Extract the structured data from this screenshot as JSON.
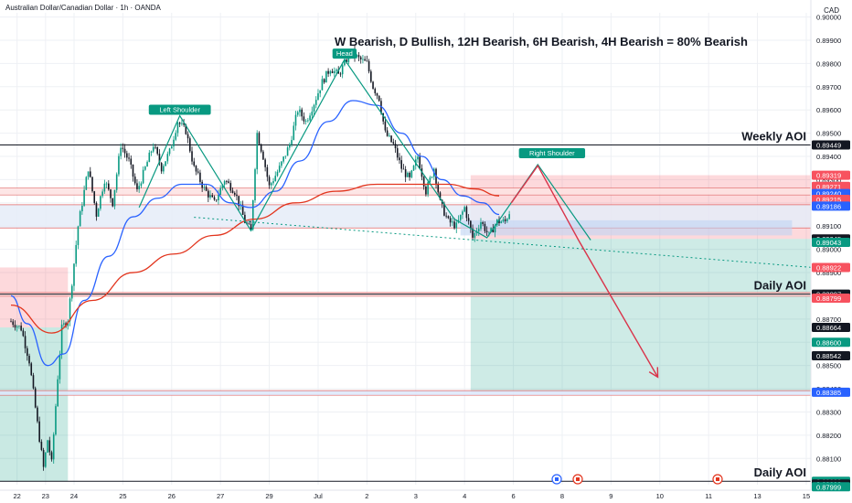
{
  "chart_data": {
    "type": "candlestick",
    "symbol_title": "Australian Dollar/Canadian Dollar · 1h · OANDA",
    "currency": "CAD",
    "headline": "W Bearish, D Bullish, 12H Bearish, 6H Bearish, 4H Bearish = 80% Bearish",
    "ylim": [
      0.87987,
      0.90018
    ],
    "y_ticks": [
      "0.90000",
      "0.89900",
      "0.89800",
      "0.89700",
      "0.89600",
      "0.89500",
      "0.89400",
      "0.89300",
      "0.89200",
      "0.89100",
      "0.89000",
      "0.88900",
      "0.88800",
      "0.88700",
      "0.88600",
      "0.88500",
      "0.88400",
      "0.88300",
      "0.88200",
      "0.88100"
    ],
    "x_ticks": [
      {
        "label": "22",
        "i": 3
      },
      {
        "label": "23",
        "i": 17
      },
      {
        "label": "24",
        "i": 31
      },
      {
        "label": "25",
        "i": 55
      },
      {
        "label": "26",
        "i": 79
      },
      {
        "label": "27",
        "i": 103
      },
      {
        "label": "29",
        "i": 127
      },
      {
        "label": "Jul",
        "i": 151
      },
      {
        "label": "2",
        "i": 175
      },
      {
        "label": "3",
        "i": 199
      },
      {
        "label": "4",
        "i": 223
      },
      {
        "label": "6",
        "i": 247
      },
      {
        "label": "8",
        "i": 271
      },
      {
        "label": "9",
        "i": 295
      },
      {
        "label": "10",
        "i": 319
      },
      {
        "label": "11",
        "i": 343
      },
      {
        "label": "13",
        "i": 367
      },
      {
        "label": "15",
        "i": 391
      }
    ],
    "price_path": [
      [
        0,
        0.8869
      ],
      [
        5,
        0.8866
      ],
      [
        9,
        0.8852
      ],
      [
        13,
        0.8825
      ],
      [
        16,
        0.8806
      ],
      [
        18,
        0.8818
      ],
      [
        20,
        0.8808
      ],
      [
        23,
        0.8845
      ],
      [
        25,
        0.8866
      ],
      [
        28,
        0.887
      ],
      [
        33,
        0.891
      ],
      [
        38,
        0.8935
      ],
      [
        42,
        0.8915
      ],
      [
        46,
        0.893
      ],
      [
        50,
        0.892
      ],
      [
        54,
        0.8945
      ],
      [
        58,
        0.8938
      ],
      [
        62,
        0.8925
      ],
      [
        66,
        0.8935
      ],
      [
        70,
        0.8945
      ],
      [
        74,
        0.8935
      ],
      [
        78,
        0.8942
      ],
      [
        82,
        0.8955
      ],
      [
        86,
        0.8951
      ],
      [
        90,
        0.8935
      ],
      [
        95,
        0.8926
      ],
      [
        100,
        0.892
      ],
      [
        105,
        0.893
      ],
      [
        110,
        0.8925
      ],
      [
        115,
        0.8912
      ],
      [
        118,
        0.8908
      ],
      [
        121,
        0.895
      ],
      [
        124,
        0.894
      ],
      [
        127,
        0.8927
      ],
      [
        132,
        0.8935
      ],
      [
        137,
        0.8945
      ],
      [
        141,
        0.896
      ],
      [
        145,
        0.8955
      ],
      [
        149,
        0.8963
      ],
      [
        153,
        0.8972
      ],
      [
        157,
        0.8978
      ],
      [
        161,
        0.8975
      ],
      [
        164,
        0.898
      ],
      [
        167,
        0.8985
      ],
      [
        171,
        0.8982
      ],
      [
        175,
        0.898
      ],
      [
        178,
        0.897
      ],
      [
        181,
        0.8965
      ],
      [
        184,
        0.895
      ],
      [
        188,
        0.8945
      ],
      [
        192,
        0.8935
      ],
      [
        196,
        0.893
      ],
      [
        200,
        0.894
      ],
      [
        204,
        0.8925
      ],
      [
        208,
        0.8935
      ],
      [
        211,
        0.892
      ],
      [
        215,
        0.8912
      ],
      [
        219,
        0.891
      ],
      [
        223,
        0.8918
      ],
      [
        227,
        0.8905
      ],
      [
        231,
        0.8912
      ],
      [
        235,
        0.8906
      ],
      [
        239,
        0.8912
      ],
      [
        243,
        0.8912
      ],
      [
        245,
        0.8916
      ]
    ],
    "series": [
      {
        "name": "",
        "color": "#2962ff",
        "points": [
          [
            0,
            0.888
          ],
          [
            8,
            0.8868
          ],
          [
            18,
            0.885
          ],
          [
            26,
            0.8855
          ],
          [
            36,
            0.8878
          ],
          [
            48,
            0.8897
          ],
          [
            60,
            0.8914
          ],
          [
            72,
            0.8922
          ],
          [
            84,
            0.8928
          ],
          [
            96,
            0.8928
          ],
          [
            108,
            0.892
          ],
          [
            118,
            0.8918
          ],
          [
            130,
            0.8925
          ],
          [
            142,
            0.8938
          ],
          [
            156,
            0.8955
          ],
          [
            168,
            0.8964
          ],
          [
            180,
            0.8962
          ],
          [
            192,
            0.895
          ],
          [
            202,
            0.894
          ],
          [
            212,
            0.893
          ],
          [
            222,
            0.8923
          ],
          [
            232,
            0.892
          ],
          [
            240,
            0.8915
          ]
        ]
      },
      {
        "name": "",
        "color": "#e2341d",
        "points": [
          [
            0,
            0.8876
          ],
          [
            20,
            0.8864
          ],
          [
            40,
            0.8878
          ],
          [
            60,
            0.889
          ],
          [
            80,
            0.8898
          ],
          [
            100,
            0.8906
          ],
          [
            120,
            0.8913
          ],
          [
            140,
            0.892
          ],
          [
            160,
            0.8925
          ],
          [
            180,
            0.8928
          ],
          [
            200,
            0.8928
          ],
          [
            215,
            0.8928
          ],
          [
            228,
            0.8926
          ],
          [
            240,
            0.8923
          ]
        ]
      }
    ],
    "zones": [
      {
        "y1": 0.89264,
        "y2": 0.89234,
        "color": "#fde2e2"
      },
      {
        "y1": 0.89192,
        "y2": 0.89092,
        "color": "#e5ecf8"
      },
      {
        "y1": 0.88814,
        "y2": 0.88798,
        "color": "#fde2e2"
      },
      {
        "y1": 0.88392,
        "y2": 0.88372,
        "color": "#dce8fb"
      }
    ],
    "h_lines": [
      {
        "price": 0.89449,
        "color": "#131722"
      },
      {
        "price": 0.88807,
        "color": "#131722"
      },
      {
        "price": 0.88002,
        "color": "#131722"
      }
    ],
    "aoi_labels": [
      {
        "text": "Weekly AOI",
        "price": 0.89449
      },
      {
        "text": "Daily AOI",
        "price": 0.88807
      },
      {
        "text": "Daily AOI",
        "price": 0.88002
      }
    ],
    "price_badges": [
      {
        "text": "0.89449",
        "price": 0.89449,
        "bg": "#131722",
        "fg": "#ffffff"
      },
      {
        "text": "0.89319",
        "price": 0.89319,
        "bg": "#f7525f",
        "fg": "#ffffff"
      },
      {
        "text": "0.89271",
        "price": 0.89271,
        "bg": "#f7525f",
        "fg": "#ffffff"
      },
      {
        "text": "0.89240",
        "price": 0.8924,
        "bg": "#2962ff",
        "fg": "#ffffff"
      },
      {
        "text": "0.89215",
        "price": 0.89215,
        "bg": "#f7525f",
        "fg": "#ffffff"
      },
      {
        "text": "0.89186",
        "price": 0.89186,
        "bg": "#2962ff",
        "fg": "#ffffff"
      },
      {
        "text": "0.89045",
        "price": 0.89045,
        "bg": "#131722",
        "fg": "#ffffff"
      },
      {
        "text": "0.89043",
        "price": 0.8903,
        "bg": "#089981",
        "fg": "#ffffff"
      },
      {
        "text": "0.88922",
        "price": 0.88922,
        "bg": "#f7525f",
        "fg": "#ffffff"
      },
      {
        "text": "0.88807",
        "price": 0.88807,
        "bg": "#131722",
        "fg": "#ffffff"
      },
      {
        "text": "0.88799",
        "price": 0.8879,
        "bg": "#f7525f",
        "fg": "#ffffff"
      },
      {
        "text": "0.88664",
        "price": 0.88664,
        "bg": "#131722",
        "fg": "#ffffff"
      },
      {
        "text": "0.88600",
        "price": 0.886,
        "bg": "#089981",
        "fg": "#ffffff"
      },
      {
        "text": "0.88542",
        "price": 0.88542,
        "bg": "#131722",
        "fg": "#ffffff"
      },
      {
        "text": "0.88385",
        "price": 0.88385,
        "bg": "#2962ff",
        "fg": "#ffffff"
      },
      {
        "text": "0.88002",
        "price": 0.88002,
        "bg": "#089981",
        "fg": "#ffffff"
      },
      {
        "text": "0.88000",
        "price": 0.8799,
        "bg": "#131722",
        "fg": "#ffffff"
      },
      {
        "text": "0.87999",
        "price": 0.87978,
        "bg": "#089981",
        "fg": "#ffffff"
      }
    ],
    "pattern_labels": [
      {
        "text": "Left Shoulder",
        "i": 83,
        "price": 0.89575
      },
      {
        "text": "Head",
        "i": 164,
        "price": 0.89817
      },
      {
        "text": "Right Shoulder",
        "i": 266,
        "price": 0.89388
      }
    ],
    "trade_setup": {
      "direction": "short",
      "entry": 0.89045,
      "stop": 0.89319,
      "target": 0.88385,
      "start_i": 226,
      "end_i": 394
    },
    "left_setup": {
      "entry": 0.88664,
      "stop": 0.88922,
      "target": 0.88002,
      "start_i": 0,
      "end_i": 28
    },
    "neckline": {
      "from": [
        90,
        0.89138
      ],
      "to": [
        394,
        0.88922
      ]
    },
    "projection": [
      [
        246,
        0.892
      ],
      [
        259,
        0.8936
      ],
      [
        279,
        0.8904
      ],
      [
        318,
        0.8845
      ]
    ],
    "pattern_path": [
      [
        63,
        0.8918
      ],
      [
        83,
        0.89575
      ],
      [
        118,
        0.8908
      ],
      [
        164,
        0.89817
      ],
      [
        218,
        0.8913
      ],
      [
        234,
        0.8905
      ],
      [
        259,
        0.89365
      ],
      [
        285,
        0.8904
      ]
    ],
    "event_icons": [
      "flag-icon",
      "flag-icon",
      "flag-icon"
    ]
  },
  "colors": {
    "bull": "#089981",
    "bear": "#131722",
    "pattern": "#089981",
    "projection": "#d9344a",
    "grid": "#eef0f4",
    "axis_text": "#131722",
    "label_bg": "#089981"
  }
}
